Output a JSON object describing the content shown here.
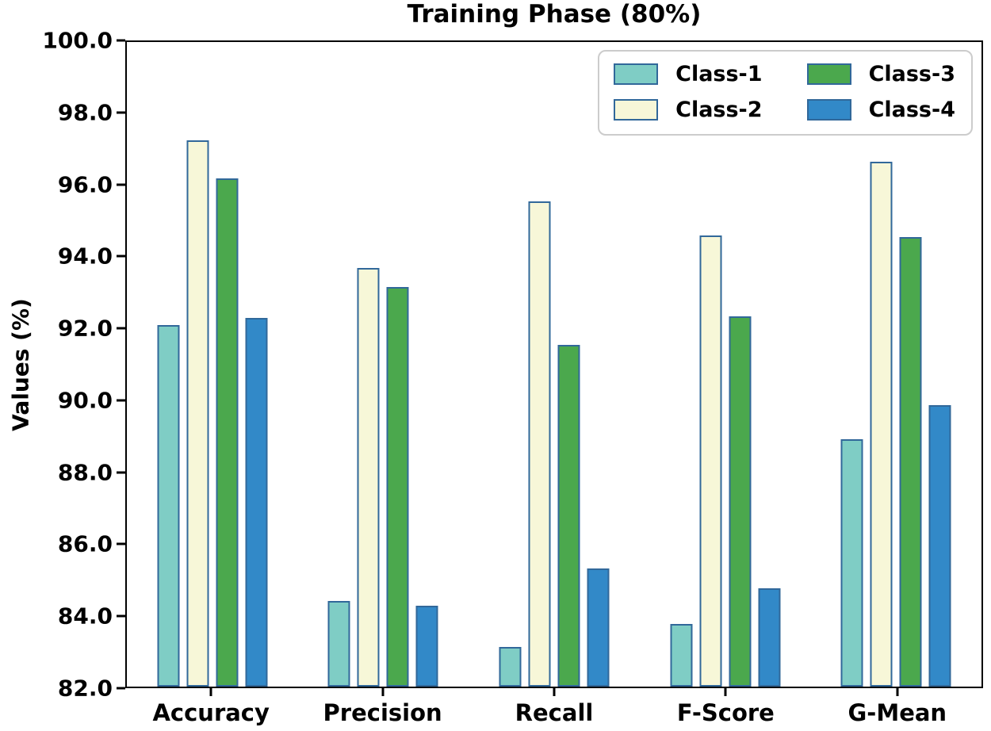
{
  "chart_data": {
    "type": "bar",
    "title": "Training Phase (80%)",
    "ylabel": "Values (%)",
    "xlabel": "",
    "categories": [
      "Accuracy",
      "Precision",
      "Recall",
      "F-Score",
      "G-Mean"
    ],
    "series": [
      {
        "name": "Class-1",
        "color": "#7fcdc5",
        "values": [
          92.1,
          84.4,
          83.1,
          83.75,
          88.9
        ]
      },
      {
        "name": "Class-2",
        "color": "#f7f7d8",
        "values": [
          97.25,
          93.7,
          95.55,
          94.6,
          96.65
        ]
      },
      {
        "name": "Class-3",
        "color": "#4ba84d",
        "values": [
          96.2,
          93.15,
          91.55,
          92.35,
          94.55
        ]
      },
      {
        "name": "Class-4",
        "color": "#3289c8",
        "values": [
          92.3,
          84.25,
          85.3,
          84.75,
          89.85
        ]
      }
    ],
    "bar_edge_color": "#31689a",
    "ylim": [
      82.0,
      100.0
    ],
    "yticks": [
      "82.0",
      "84.0",
      "86.0",
      "88.0",
      "90.0",
      "92.0",
      "94.0",
      "96.0",
      "98.0",
      "100.0"
    ],
    "grid": false,
    "legend_position": "upper right",
    "legend_columns": 2
  }
}
